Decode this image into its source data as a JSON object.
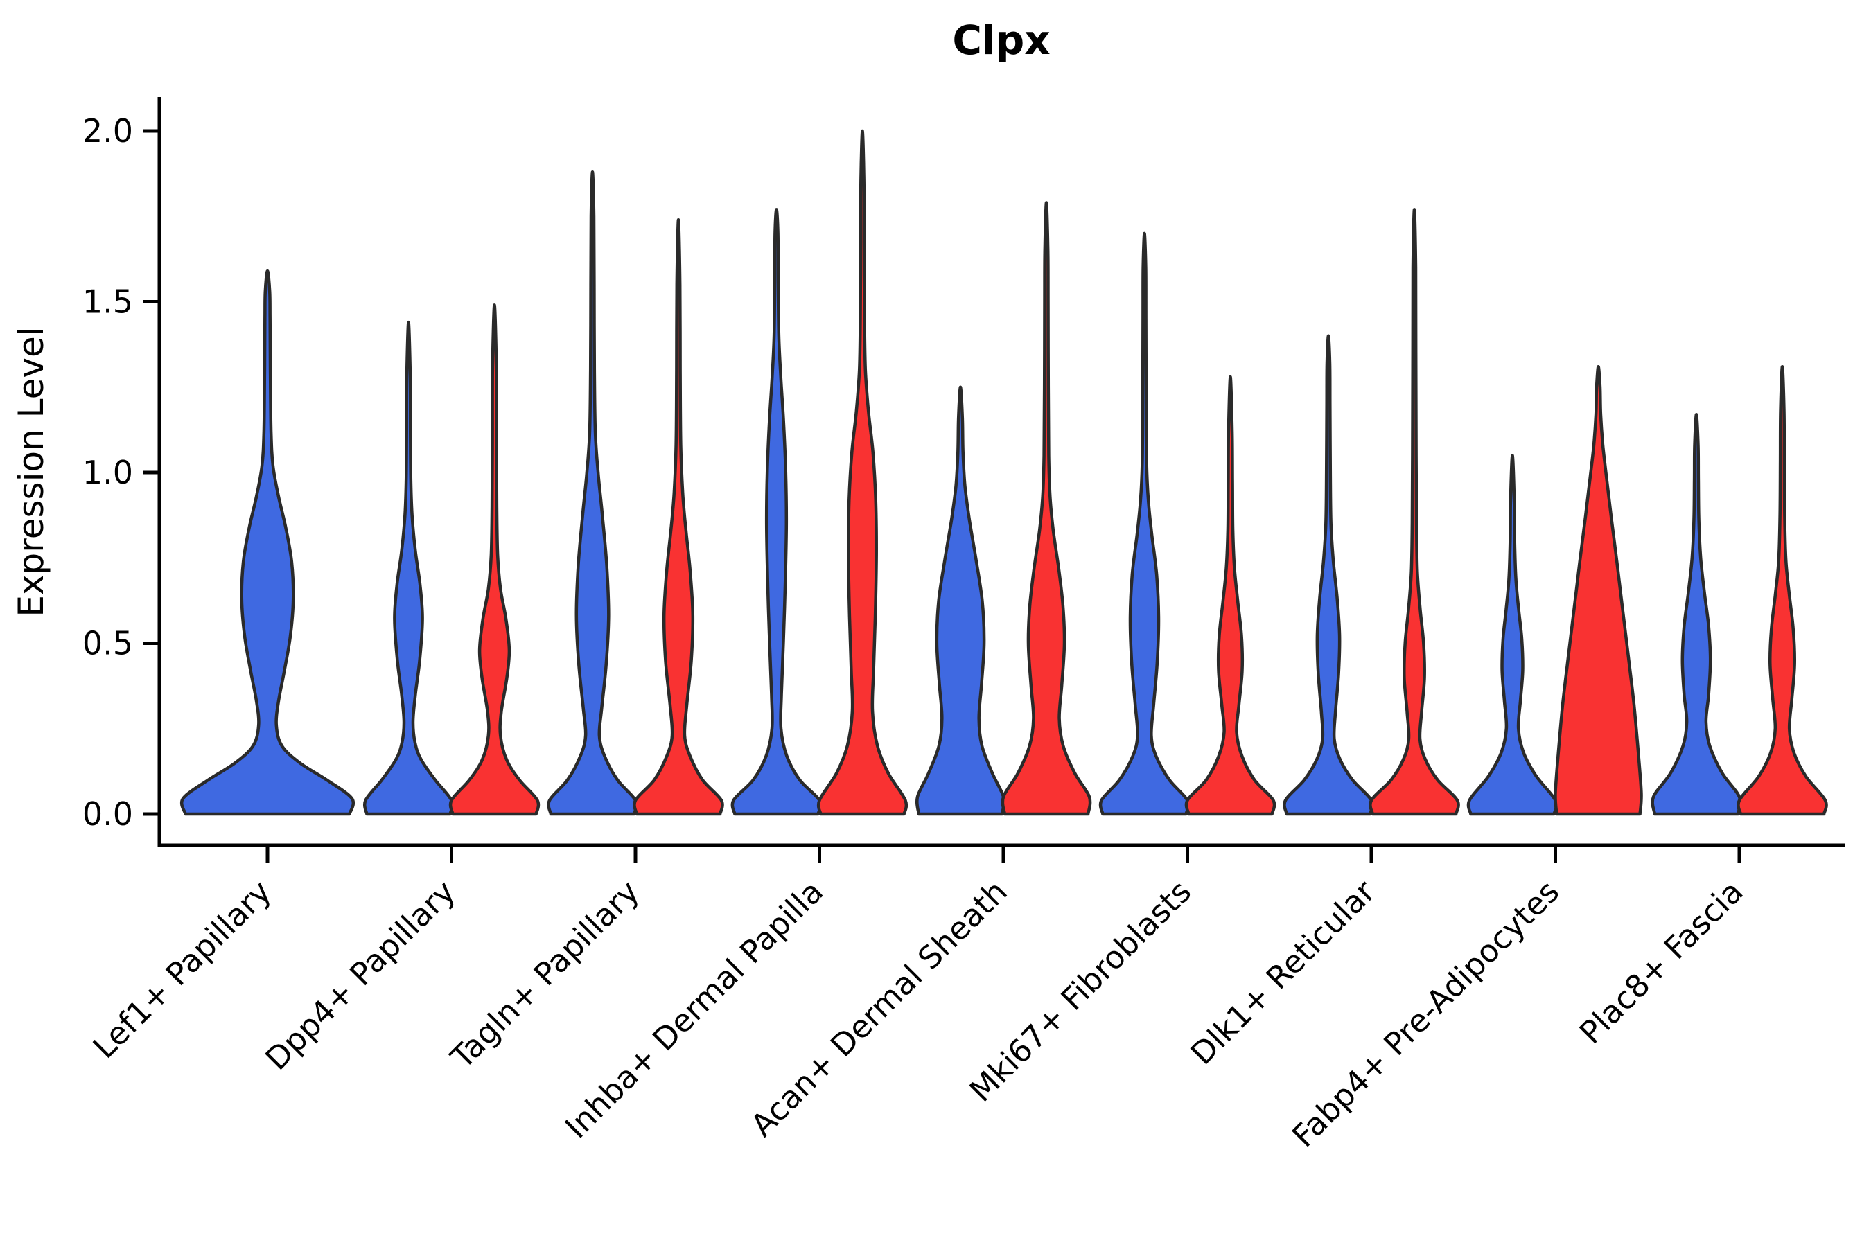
{
  "chart_data": {
    "type": "violin",
    "title": "Clpx",
    "ylabel": "Expression Level",
    "xlabel": "",
    "ylim": [
      0,
      2.05
    ],
    "yticks": [
      0.0,
      0.5,
      1.0,
      1.5,
      2.0
    ],
    "ytick_labels": [
      "0.0",
      "0.5",
      "1.0",
      "1.5",
      "2.0"
    ],
    "grid": false,
    "legend_position": "none",
    "xticklabel_rotation": 45,
    "colors": {
      "blue": "#3F69E1",
      "red": "#F93232",
      "edge": "#2A2A2A",
      "axis": "#000000"
    },
    "categories": [
      "Lef1+ Papillary",
      "Dpp4+ Papillary",
      "Tagln+ Papillary",
      "Inhba+ Dermal Papilla",
      "Acan+ Dermal Sheath",
      "Mki67+ Fibroblasts",
      "Dlk1+ Reticular",
      "Fabp4+ Pre-Adipocytes",
      "Plac8+ Fascia"
    ],
    "violins": [
      {
        "category": "Lef1+ Papillary",
        "side": "single",
        "color": "blue",
        "peak": 1.59,
        "profile": [
          [
            0,
            0.97
          ],
          [
            0.045,
            1.0
          ],
          [
            0.1,
            0.7
          ],
          [
            0.15,
            0.38
          ],
          [
            0.2,
            0.17
          ],
          [
            0.26,
            0.105
          ],
          [
            0.33,
            0.13
          ],
          [
            0.42,
            0.2
          ],
          [
            0.52,
            0.27
          ],
          [
            0.63,
            0.305
          ],
          [
            0.74,
            0.285
          ],
          [
            0.84,
            0.215
          ],
          [
            0.93,
            0.13
          ],
          [
            1.02,
            0.065
          ],
          [
            1.12,
            0.042
          ],
          [
            1.3,
            0.034
          ],
          [
            1.45,
            0.03
          ],
          [
            1.53,
            0.026
          ],
          [
            1.59,
            0.0
          ]
        ]
      },
      {
        "category": "Dpp4+ Papillary",
        "side": "left",
        "color": "blue",
        "peak": 1.44,
        "profile": [
          [
            0,
            0.97
          ],
          [
            0.04,
            1.0
          ],
          [
            0.1,
            0.62
          ],
          [
            0.16,
            0.29
          ],
          [
            0.21,
            0.15
          ],
          [
            0.27,
            0.105
          ],
          [
            0.35,
            0.16
          ],
          [
            0.45,
            0.26
          ],
          [
            0.57,
            0.325
          ],
          [
            0.67,
            0.27
          ],
          [
            0.77,
            0.16
          ],
          [
            0.87,
            0.085
          ],
          [
            0.97,
            0.055
          ],
          [
            1.1,
            0.045
          ],
          [
            1.28,
            0.04
          ],
          [
            1.44,
            0.0
          ]
        ]
      },
      {
        "category": "Dpp4+ Papillary",
        "side": "right",
        "color": "red",
        "peak": 1.49,
        "profile": [
          [
            0,
            0.97
          ],
          [
            0.04,
            1.0
          ],
          [
            0.1,
            0.58
          ],
          [
            0.16,
            0.28
          ],
          [
            0.23,
            0.14
          ],
          [
            0.3,
            0.16
          ],
          [
            0.4,
            0.29
          ],
          [
            0.48,
            0.345
          ],
          [
            0.57,
            0.27
          ],
          [
            0.66,
            0.14
          ],
          [
            0.76,
            0.075
          ],
          [
            0.9,
            0.055
          ],
          [
            1.1,
            0.047
          ],
          [
            1.32,
            0.042
          ],
          [
            1.49,
            0.0
          ]
        ]
      },
      {
        "category": "Tagln+ Papillary",
        "side": "left",
        "color": "blue",
        "peak": 1.88,
        "profile": [
          [
            0,
            0.97
          ],
          [
            0.04,
            1.0
          ],
          [
            0.1,
            0.58
          ],
          [
            0.17,
            0.28
          ],
          [
            0.23,
            0.16
          ],
          [
            0.31,
            0.215
          ],
          [
            0.44,
            0.32
          ],
          [
            0.58,
            0.375
          ],
          [
            0.73,
            0.33
          ],
          [
            0.88,
            0.225
          ],
          [
            1.0,
            0.13
          ],
          [
            1.12,
            0.065
          ],
          [
            1.3,
            0.045
          ],
          [
            1.55,
            0.038
          ],
          [
            1.75,
            0.032
          ],
          [
            1.88,
            0.0
          ]
        ]
      },
      {
        "category": "Tagln+ Papillary",
        "side": "right",
        "color": "red",
        "peak": 1.74,
        "profile": [
          [
            0,
            0.97
          ],
          [
            0.04,
            1.0
          ],
          [
            0.1,
            0.56
          ],
          [
            0.17,
            0.27
          ],
          [
            0.23,
            0.145
          ],
          [
            0.32,
            0.195
          ],
          [
            0.45,
            0.3
          ],
          [
            0.58,
            0.335
          ],
          [
            0.71,
            0.275
          ],
          [
            0.83,
            0.175
          ],
          [
            0.94,
            0.1
          ],
          [
            1.08,
            0.055
          ],
          [
            1.3,
            0.042
          ],
          [
            1.55,
            0.036
          ],
          [
            1.74,
            0.0
          ]
        ]
      },
      {
        "category": "Inhba+ Dermal Papilla",
        "side": "left",
        "color": "blue",
        "peak": 1.77,
        "profile": [
          [
            0,
            0.97
          ],
          [
            0.04,
            1.0
          ],
          [
            0.1,
            0.54
          ],
          [
            0.17,
            0.24
          ],
          [
            0.25,
            0.105
          ],
          [
            0.35,
            0.115
          ],
          [
            0.5,
            0.16
          ],
          [
            0.68,
            0.205
          ],
          [
            0.85,
            0.23
          ],
          [
            1.0,
            0.215
          ],
          [
            1.15,
            0.165
          ],
          [
            1.28,
            0.1
          ],
          [
            1.4,
            0.055
          ],
          [
            1.55,
            0.04
          ],
          [
            1.7,
            0.034
          ],
          [
            1.77,
            0.0
          ]
        ]
      },
      {
        "category": "Inhba+ Dermal Papilla",
        "side": "right",
        "color": "red",
        "peak": 2.0,
        "profile": [
          [
            0,
            0.97
          ],
          [
            0.04,
            1.0
          ],
          [
            0.12,
            0.6
          ],
          [
            0.2,
            0.35
          ],
          [
            0.3,
            0.235
          ],
          [
            0.42,
            0.26
          ],
          [
            0.58,
            0.3
          ],
          [
            0.76,
            0.325
          ],
          [
            0.92,
            0.31
          ],
          [
            1.06,
            0.245
          ],
          [
            1.18,
            0.14
          ],
          [
            1.3,
            0.07
          ],
          [
            1.45,
            0.048
          ],
          [
            1.65,
            0.04
          ],
          [
            1.85,
            0.035
          ],
          [
            2.0,
            0.0
          ]
        ]
      },
      {
        "category": "Acan+ Dermal Sheath",
        "side": "left",
        "color": "blue",
        "peak": 1.25,
        "profile": [
          [
            0,
            0.97
          ],
          [
            0.05,
            1.0
          ],
          [
            0.12,
            0.74
          ],
          [
            0.2,
            0.5
          ],
          [
            0.28,
            0.43
          ],
          [
            0.38,
            0.49
          ],
          [
            0.5,
            0.55
          ],
          [
            0.62,
            0.51
          ],
          [
            0.74,
            0.37
          ],
          [
            0.86,
            0.21
          ],
          [
            0.96,
            0.105
          ],
          [
            1.06,
            0.06
          ],
          [
            1.16,
            0.045
          ],
          [
            1.25,
            0.0
          ]
        ]
      },
      {
        "category": "Acan+ Dermal Sheath",
        "side": "right",
        "color": "red",
        "peak": 1.79,
        "profile": [
          [
            0,
            0.97
          ],
          [
            0.05,
            1.0
          ],
          [
            0.12,
            0.66
          ],
          [
            0.2,
            0.39
          ],
          [
            0.28,
            0.3
          ],
          [
            0.38,
            0.36
          ],
          [
            0.5,
            0.42
          ],
          [
            0.61,
            0.385
          ],
          [
            0.72,
            0.285
          ],
          [
            0.83,
            0.16
          ],
          [
            0.93,
            0.085
          ],
          [
            1.05,
            0.055
          ],
          [
            1.25,
            0.045
          ],
          [
            1.5,
            0.04
          ],
          [
            1.65,
            0.035
          ],
          [
            1.79,
            0.0
          ]
        ]
      },
      {
        "category": "Mki67+ Fibroblasts",
        "side": "left",
        "color": "blue",
        "peak": 1.7,
        "profile": [
          [
            0,
            0.97
          ],
          [
            0.04,
            1.0
          ],
          [
            0.1,
            0.58
          ],
          [
            0.17,
            0.27
          ],
          [
            0.23,
            0.16
          ],
          [
            0.32,
            0.215
          ],
          [
            0.44,
            0.295
          ],
          [
            0.57,
            0.33
          ],
          [
            0.7,
            0.285
          ],
          [
            0.82,
            0.17
          ],
          [
            0.92,
            0.09
          ],
          [
            1.03,
            0.05
          ],
          [
            1.2,
            0.04
          ],
          [
            1.45,
            0.034
          ],
          [
            1.6,
            0.03
          ],
          [
            1.7,
            0.0
          ]
        ]
      },
      {
        "category": "Mki67+ Fibroblasts",
        "side": "right",
        "color": "red",
        "peak": 1.28,
        "profile": [
          [
            0,
            0.97
          ],
          [
            0.04,
            1.0
          ],
          [
            0.1,
            0.56
          ],
          [
            0.17,
            0.27
          ],
          [
            0.24,
            0.145
          ],
          [
            0.32,
            0.2
          ],
          [
            0.42,
            0.275
          ],
          [
            0.52,
            0.26
          ],
          [
            0.62,
            0.175
          ],
          [
            0.72,
            0.095
          ],
          [
            0.83,
            0.058
          ],
          [
            0.97,
            0.05
          ],
          [
            1.12,
            0.042
          ],
          [
            1.28,
            0.0
          ]
        ]
      },
      {
        "category": "Dlk1+ Reticular",
        "side": "left",
        "color": "blue",
        "peak": 1.4,
        "profile": [
          [
            0,
            0.97
          ],
          [
            0.04,
            1.0
          ],
          [
            0.1,
            0.56
          ],
          [
            0.16,
            0.27
          ],
          [
            0.22,
            0.135
          ],
          [
            0.3,
            0.165
          ],
          [
            0.41,
            0.235
          ],
          [
            0.52,
            0.26
          ],
          [
            0.63,
            0.205
          ],
          [
            0.74,
            0.115
          ],
          [
            0.85,
            0.06
          ],
          [
            1.0,
            0.045
          ],
          [
            1.2,
            0.037
          ],
          [
            1.32,
            0.032
          ],
          [
            1.4,
            0.0
          ]
        ]
      },
      {
        "category": "Dlk1+ Reticular",
        "side": "right",
        "color": "red",
        "peak": 1.77,
        "profile": [
          [
            0,
            0.97
          ],
          [
            0.04,
            1.0
          ],
          [
            0.1,
            0.54
          ],
          [
            0.16,
            0.255
          ],
          [
            0.22,
            0.13
          ],
          [
            0.3,
            0.17
          ],
          [
            0.4,
            0.235
          ],
          [
            0.5,
            0.215
          ],
          [
            0.6,
            0.135
          ],
          [
            0.71,
            0.07
          ],
          [
            0.85,
            0.05
          ],
          [
            1.05,
            0.042
          ],
          [
            1.35,
            0.036
          ],
          [
            1.6,
            0.032
          ],
          [
            1.77,
            0.0
          ]
        ]
      },
      {
        "category": "Fabp4+ Pre-Adipocytes",
        "side": "left",
        "color": "blue",
        "peak": 1.05,
        "profile": [
          [
            0,
            0.97
          ],
          [
            0.04,
            1.0
          ],
          [
            0.11,
            0.56
          ],
          [
            0.18,
            0.26
          ],
          [
            0.25,
            0.14
          ],
          [
            0.33,
            0.185
          ],
          [
            0.42,
            0.24
          ],
          [
            0.51,
            0.22
          ],
          [
            0.6,
            0.145
          ],
          [
            0.69,
            0.08
          ],
          [
            0.8,
            0.052
          ],
          [
            0.92,
            0.042
          ],
          [
            1.05,
            0.0
          ]
        ]
      },
      {
        "category": "Fabp4+ Pre-Adipocytes",
        "side": "right",
        "color": "red",
        "peak": 1.31,
        "profile": [
          [
            0,
            0.97
          ],
          [
            0.06,
            1.0
          ],
          [
            0.18,
            0.93
          ],
          [
            0.32,
            0.83
          ],
          [
            0.46,
            0.7
          ],
          [
            0.6,
            0.565
          ],
          [
            0.74,
            0.43
          ],
          [
            0.87,
            0.3
          ],
          [
            0.98,
            0.195
          ],
          [
            1.08,
            0.105
          ],
          [
            1.17,
            0.055
          ],
          [
            1.25,
            0.04
          ],
          [
            1.31,
            0.0
          ]
        ]
      },
      {
        "category": "Plac8+ Fascia",
        "side": "left",
        "color": "blue",
        "peak": 1.17,
        "profile": [
          [
            0,
            0.97
          ],
          [
            0.05,
            1.0
          ],
          [
            0.12,
            0.6
          ],
          [
            0.2,
            0.31
          ],
          [
            0.27,
            0.225
          ],
          [
            0.35,
            0.285
          ],
          [
            0.45,
            0.325
          ],
          [
            0.55,
            0.285
          ],
          [
            0.65,
            0.185
          ],
          [
            0.75,
            0.1
          ],
          [
            0.86,
            0.058
          ],
          [
            0.98,
            0.047
          ],
          [
            1.08,
            0.04
          ],
          [
            1.17,
            0.0
          ]
        ]
      },
      {
        "category": "Plac8+ Fascia",
        "side": "right",
        "color": "red",
        "peak": 1.31,
        "profile": [
          [
            0,
            0.97
          ],
          [
            0.04,
            1.0
          ],
          [
            0.11,
            0.55
          ],
          [
            0.18,
            0.27
          ],
          [
            0.25,
            0.165
          ],
          [
            0.34,
            0.225
          ],
          [
            0.44,
            0.285
          ],
          [
            0.54,
            0.255
          ],
          [
            0.64,
            0.165
          ],
          [
            0.74,
            0.085
          ],
          [
            0.87,
            0.055
          ],
          [
            1.02,
            0.046
          ],
          [
            1.18,
            0.04
          ],
          [
            1.31,
            0.0
          ]
        ]
      }
    ]
  }
}
